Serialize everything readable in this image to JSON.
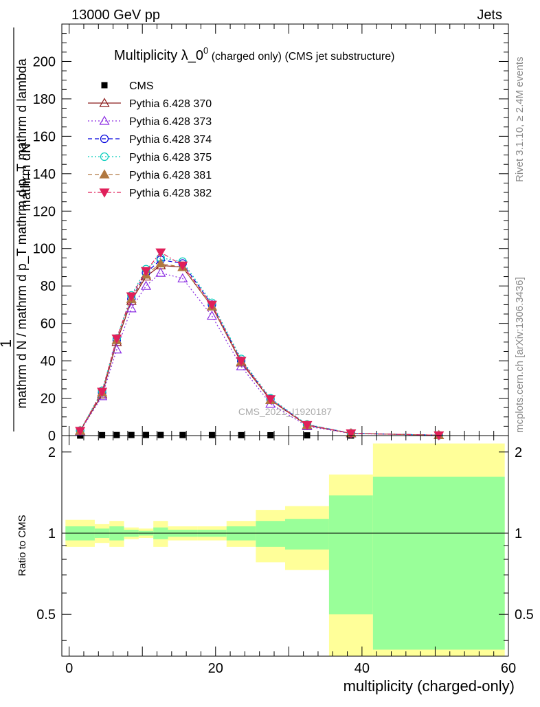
{
  "header": {
    "energy_label": "13000 GeV pp",
    "process_label": "Jets",
    "side_version": "Rivet 3.1.10, ≥ 2.4M events",
    "side_site": "mcplots.cern.ch [arXiv:1306.3436]",
    "watermark": "CMS_2021_I1920187"
  },
  "chart_data": [
    {
      "type": "line",
      "title_main": "Multiplicity λ_0",
      "title_sup": "0",
      "title_rest": " (charged only) (CMS jet substructure)",
      "ylabel_numerator": "mathrm dN",
      "ylabel_numer_prefix": "1",
      "ylabel_denominator": "mathrm d N / mathrm d p_T mathrm d p_T mathrm d lambda",
      "xlim": [
        -1,
        60
      ],
      "ylim": [
        0,
        220
      ],
      "y_ticks": [
        0,
        20,
        40,
        60,
        80,
        100,
        120,
        140,
        160,
        180,
        200
      ],
      "x": [
        1.5,
        4.5,
        6.5,
        8.5,
        10.5,
        12.5,
        15.5,
        19.5,
        23.5,
        27.5,
        32.5,
        38.5,
        50.5
      ],
      "x_edges": [
        -0.5,
        3.5,
        5.5,
        7.5,
        9.5,
        11.5,
        13.5,
        17.5,
        21.5,
        25.5,
        29.5,
        35.5,
        41.5,
        59.5
      ],
      "legend_position": "top-left",
      "series": [
        {
          "name": "CMS",
          "color": "#000000",
          "marker": "square",
          "dash": "none",
          "values": [
            0.02,
            0.25,
            0.3,
            0.32,
            0.33,
            0.33,
            0.3,
            0.28,
            0.24,
            0.2,
            0.14,
            0.02,
            0.01
          ]
        },
        {
          "name": "Pythia 6.428 370",
          "color": "#8b1a1a",
          "marker": "triangle-open",
          "dash": "solid",
          "values": [
            2.5,
            22,
            50,
            72,
            85,
            91,
            90,
            69,
            39,
            19,
            5.5,
            1.2,
            0.2
          ]
        },
        {
          "name": "Pythia 6.428 373",
          "color": "#8a2be2",
          "marker": "triangle-open",
          "dash": "dotted",
          "values": [
            2.3,
            21,
            46,
            68,
            80,
            87,
            84,
            64,
            37,
            17,
            5,
            1.1,
            0.2
          ]
        },
        {
          "name": "Pythia 6.428 374",
          "color": "#0000dd",
          "marker": "circle-open",
          "dash": "dashed",
          "values": [
            2.6,
            23,
            51,
            73,
            87,
            94,
            92,
            70,
            40,
            19.5,
            5.8,
            1.3,
            0.2
          ]
        },
        {
          "name": "Pythia 6.428 375",
          "color": "#00ccbb",
          "marker": "circle-open",
          "dash": "dotted",
          "values": [
            2.7,
            24,
            52,
            75,
            89,
            95,
            93,
            71,
            41,
            20,
            6,
            1.3,
            0.2
          ]
        },
        {
          "name": "Pythia 6.428 381",
          "color": "#b07840",
          "marker": "triangle-filled",
          "dash": "dashed",
          "values": [
            2.5,
            23,
            51,
            73,
            86,
            92,
            90,
            69,
            39.5,
            19,
            5.6,
            1.2,
            0.2
          ]
        },
        {
          "name": "Pythia 6.428 382",
          "color": "#e0205a",
          "marker": "triangle-down-filled",
          "dash": "dashdot",
          "values": [
            2.6,
            23.5,
            52,
            74.5,
            88,
            98,
            91,
            70,
            40,
            19.5,
            5.7,
            1.25,
            0.2
          ]
        }
      ]
    },
    {
      "type": "area",
      "ylabel": "Ratio to CMS",
      "xlabel": "multiplicity (charged-only)",
      "xlim": [
        -1,
        60
      ],
      "ylim": [
        0.35,
        2.3
      ],
      "x_ticks": [
        0,
        20,
        40,
        60
      ],
      "y_ticks": [
        0.5,
        1,
        2
      ],
      "x_edges": [
        -0.5,
        3.5,
        5.5,
        7.5,
        9.5,
        11.5,
        13.5,
        17.5,
        21.5,
        25.5,
        29.5,
        35.5,
        41.5,
        59.5
      ],
      "band_inner": {
        "color": "#99ff99",
        "lo": [
          0.94,
          0.96,
          0.94,
          0.97,
          0.98,
          0.95,
          0.97,
          0.97,
          0.94,
          0.89,
          0.87,
          0.5,
          0.37
        ],
        "hi": [
          1.06,
          1.04,
          1.06,
          1.03,
          1.02,
          1.05,
          1.03,
          1.03,
          1.06,
          1.11,
          1.13,
          1.38,
          1.62
        ]
      },
      "band_outer": {
        "color": "#ffff99",
        "lo": [
          0.89,
          0.92,
          0.89,
          0.95,
          0.96,
          0.89,
          0.94,
          0.94,
          0.89,
          0.78,
          0.73,
          0.35,
          0.35
        ],
        "hi": [
          1.12,
          1.08,
          1.11,
          1.05,
          1.04,
          1.11,
          1.06,
          1.06,
          1.11,
          1.22,
          1.26,
          1.65,
          2.15
        ]
      }
    }
  ]
}
